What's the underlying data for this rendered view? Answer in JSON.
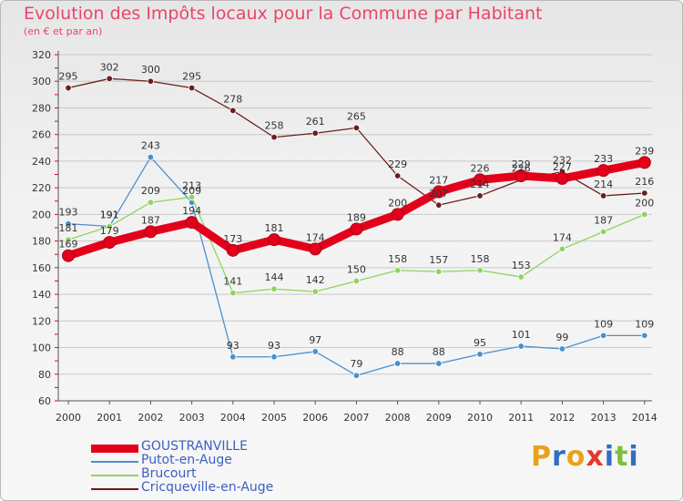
{
  "header": {
    "title": "Evolution des Impôts locaux pour la Commune par Habitant",
    "subtitle": "(en € et par an)"
  },
  "logo": {
    "text": "Proxiti"
  },
  "colors": {
    "title": "#e8456a",
    "legend_text": "#3b5fc0",
    "grid": "#c8c8c8",
    "axis_label": "#333333"
  },
  "chart_data": {
    "type": "line",
    "title": "Evolution des Impôts locaux pour la Commune par Habitant",
    "subtitle": "(en € et par an)",
    "xlabel": "",
    "ylabel": "",
    "categories": [
      "2000",
      "2001",
      "2002",
      "2003",
      "2004",
      "2005",
      "2006",
      "2007",
      "2008",
      "2009",
      "2010",
      "2011",
      "2012",
      "2013",
      "2014"
    ],
    "ylim": [
      60,
      320
    ],
    "yticks": [
      60,
      80,
      100,
      120,
      140,
      160,
      180,
      200,
      220,
      240,
      260,
      280,
      300,
      320
    ],
    "grid": true,
    "legend_position": "bottom-left",
    "series": [
      {
        "name": "GOUSTRANVILLE",
        "color": "#e3001b",
        "values": [
          169,
          179,
          187,
          194,
          173,
          181,
          174,
          189,
          200,
          217,
          226,
          229,
          227,
          233,
          239
        ]
      },
      {
        "name": "Putot-en-Auge",
        "color": "#4a90cd",
        "values": [
          193,
          191,
          243,
          209,
          93,
          93,
          97,
          79,
          88,
          88,
          95,
          101,
          99,
          109,
          109
        ]
      },
      {
        "name": "Brucourt",
        "color": "#8fd45f",
        "values": [
          181,
          191,
          209,
          213,
          141,
          144,
          142,
          150,
          158,
          157,
          158,
          153,
          174,
          187,
          200
        ]
      },
      {
        "name": "Cricqueville-en-Auge",
        "color": "#6b1d1d",
        "values": [
          295,
          302,
          300,
          295,
          278,
          258,
          261,
          265,
          229,
          207,
          214,
          226,
          232,
          214,
          216
        ]
      }
    ]
  }
}
